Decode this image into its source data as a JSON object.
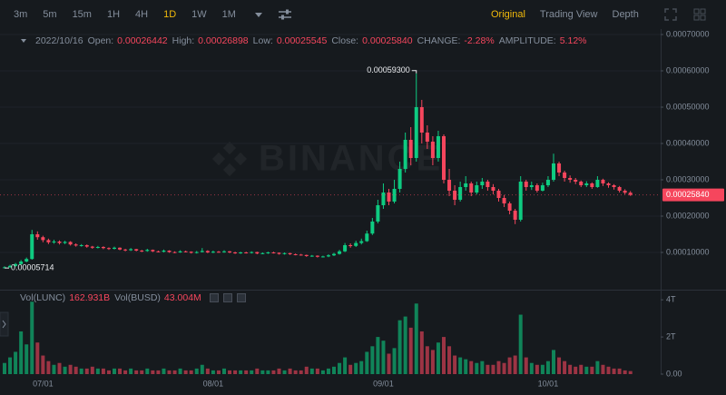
{
  "toolbar": {
    "intervals": [
      "3m",
      "5m",
      "15m",
      "1H",
      "4H",
      "1D",
      "1W",
      "1M"
    ],
    "active_interval": "1D",
    "views": [
      "Original",
      "Trading View",
      "Depth"
    ],
    "active_view": "Original"
  },
  "chart_data": {
    "type": "candlestick",
    "info": {
      "date": "2022/10/16",
      "fields": [
        {
          "label": "Open:",
          "value": "0.00026442"
        },
        {
          "label": "High:",
          "value": "0.00026898"
        },
        {
          "label": "Low:",
          "value": "0.00025545"
        },
        {
          "label": "Close:",
          "value": "0.00025840"
        },
        {
          "label": "CHANGE:",
          "value": "-2.28%"
        },
        {
          "label": "AMPLITUDE:",
          "value": "5.12%"
        }
      ]
    },
    "volume_info": [
      {
        "label": "Vol(LUNC)",
        "value": "162.931B"
      },
      {
        "label": "Vol(BUSD)",
        "value": "43.004M"
      }
    ],
    "watermark": "BINANCE",
    "categories": [
      null,
      null,
      null,
      null,
      null,
      null,
      null,
      "07/01",
      null,
      null,
      null,
      null,
      null,
      null,
      null,
      null,
      null,
      null,
      null,
      null,
      null,
      null,
      null,
      null,
      null,
      null,
      null,
      null,
      null,
      null,
      null,
      null,
      null,
      null,
      null,
      null,
      null,
      null,
      "08/01",
      null,
      null,
      null,
      null,
      null,
      null,
      null,
      null,
      null,
      null,
      null,
      null,
      null,
      null,
      null,
      null,
      null,
      null,
      null,
      null,
      null,
      null,
      null,
      null,
      null,
      null,
      null,
      null,
      null,
      null,
      "09/01",
      null,
      null,
      null,
      null,
      null,
      null,
      null,
      null,
      null,
      null,
      null,
      null,
      null,
      null,
      null,
      null,
      null,
      null,
      null,
      null,
      null,
      null,
      null,
      null,
      null,
      null,
      null,
      null,
      null,
      "10/01",
      null,
      null,
      null,
      null,
      null,
      null,
      null,
      null,
      null,
      null,
      null,
      null,
      null,
      null,
      null
    ],
    "open": [
      5.8e-05,
      5.9e-05,
      6.3e-05,
      6.8e-05,
      7.5e-05,
      8.2e-05,
      0.00015,
      0.000142,
      0.000134,
      0.000128,
      0.00013,
      0.000126,
      0.000129,
      0.000122,
      0.000119,
      0.00012,
      0.000116,
      0.000113,
      0.000115,
      0.000112,
      0.00011,
      0.000113,
      0.000108,
      0.000106,
      0.000109,
      0.000105,
      0.000104,
      0.000107,
      0.000103,
      0.000102,
      0.000105,
      0.000101,
      0.0001,
      0.000103,
      0.000102,
      9.9e-05,
      0.000101,
      0.000104,
      0.0001,
      0.000102,
      0.000101,
      0.000103,
      0.0001,
      9.8e-05,
      0.0001,
      9.9e-05,
      0.000101,
      9.7e-05,
      9.8e-05,
      0.0001,
      9.9e-05,
      9.6e-05,
      9.8e-05,
      9.5e-05,
      9.4e-05,
      9.3e-05,
      9e-05,
      9.1e-05,
      8.8e-05,
      8.9e-05,
      9.2e-05,
      9.6e-05,
      0.000103,
      0.00012,
      0.000118,
      0.000126,
      0.000131,
      0.000152,
      0.000185,
      0.00023,
      0.000265,
      0.00024,
      0.000275,
      0.00033,
      0.00041,
      0.00036,
      0.0005,
      0.00043,
      0.000405,
      0.00036,
      0.00042,
      0.0003,
      0.00027,
      0.000245,
      0.00028,
      0.00029,
      0.000265,
      0.000285,
      0.000295,
      0.00028,
      0.00027,
      0.00025,
      0.000235,
      0.000215,
      0.00019,
      0.000295,
      0.00028,
      0.000285,
      0.00027,
      0.000285,
      0.0003,
      0.000345,
      0.00032,
      0.000305,
      0.0003,
      0.000295,
      0.000285,
      0.00029,
      0.00028,
      0.0003,
      0.00029,
      0.000285,
      0.00028,
      0.00027,
      0.00026442
    ],
    "high": [
      6.2e-05,
      6.6e-05,
      7.1e-05,
      7.9e-05,
      8.6e-05,
      0.000162,
      0.000158,
      0.000146,
      0.000138,
      0.000135,
      0.000133,
      0.000132,
      0.000131,
      0.000125,
      0.000123,
      0.000122,
      0.000118,
      0.000118,
      0.000117,
      0.000114,
      0.000116,
      0.000114,
      0.00011,
      0.000112,
      0.00011,
      0.000107,
      0.00011,
      0.000108,
      0.000105,
      0.000108,
      0.000106,
      0.000103,
      0.000106,
      0.000105,
      0.000103,
      0.000104,
      0.000112,
      0.000106,
      0.000105,
      0.000104,
      0.000106,
      0.000104,
      0.000102,
      0.000102,
      0.000102,
      0.000103,
      0.000102,
      0.0001,
      0.000102,
      0.000102,
      0.0001,
      0.0001,
      9.9e-05,
      9.7e-05,
      9.6e-05,
      9.4e-05,
      9.3e-05,
      9.2e-05,
      9.1e-05,
      9.5e-05,
      9.9e-05,
      0.000107,
      0.000126,
      0.000125,
      0.000132,
      0.000138,
      0.00016,
      0.000195,
      0.000245,
      0.00029,
      0.000275,
      0.0003,
      0.00035,
      0.00043,
      0.000445,
      0.000593,
      0.00052,
      0.00045,
      0.00042,
      0.000435,
      0.000425,
      0.00033,
      0.000285,
      0.000295,
      0.00031,
      0.000295,
      0.000295,
      0.000305,
      0.0003,
      0.000288,
      0.000275,
      0.000258,
      0.00024,
      0.00022,
      0.00031,
      0.0003,
      0.000295,
      0.00029,
      0.000292,
      0.00031,
      0.000372,
      0.00035,
      0.000325,
      0.000312,
      0.000305,
      0.000298,
      0.000296,
      0.000293,
      0.00031,
      0.000303,
      0.000293,
      0.000288,
      0.000283,
      0.000274,
      0.00026898
    ],
    "low": [
      5.714e-05,
      5.8e-05,
      6.1e-05,
      6.6e-05,
      7.3e-05,
      8e-05,
      0.000135,
      0.000128,
      0.000123,
      0.000124,
      0.000122,
      0.000123,
      0.000119,
      0.000116,
      0.000116,
      0.000113,
      0.00011,
      0.000111,
      0.000109,
      0.000107,
      0.000108,
      0.000106,
      0.000103,
      0.000104,
      0.000103,
      0.000101,
      0.000102,
      0.000101,
      0.0001,
      0.0001,
      9.9e-05,
      9.8e-05,
      9.9e-05,
      0.0001,
      9.7e-05,
      9.7e-05,
      0.0001,
      9.8e-05,
      9.8e-05,
      9.9e-05,
      9.9e-05,
      9.8e-05,
      9.6e-05,
      9.6e-05,
      9.7e-05,
      9.7e-05,
      9.5e-05,
      9.5e-05,
      9.6e-05,
      9.7e-05,
      9.4e-05,
      9.4e-05,
      9.3e-05,
      9.2e-05,
      9.1e-05,
      8.8e-05,
      8.8e-05,
      8.6e-05,
      8.6e-05,
      8.7e-05,
      9e-05,
      9.4e-05,
      0.000101,
      0.000113,
      0.000115,
      0.000122,
      0.000129,
      0.000148,
      0.00018,
      0.00022,
      0.00023,
      0.000235,
      0.000265,
      0.00032,
      0.00034,
      0.00035,
      0.0004,
      0.000385,
      0.00034,
      0.00035,
      0.00029,
      0.000255,
      0.00023,
      0.00024,
      0.00027,
      0.000255,
      0.00026,
      0.000275,
      0.00027,
      0.00026,
      0.00024,
      0.000225,
      0.000205,
      0.000178,
      0.000185,
      0.00027,
      0.000272,
      0.000265,
      0.000268,
      0.00028,
      0.000295,
      0.00031,
      0.000295,
      0.000292,
      0.000288,
      0.00028,
      0.00028,
      0.000275,
      0.000278,
      0.000283,
      0.000278,
      0.000273,
      0.000265,
      0.00026,
      0.00025545
    ],
    "close": [
      5.9e-05,
      6.3e-05,
      6.8e-05,
      7.5e-05,
      8.2e-05,
      0.00015,
      0.000142,
      0.000134,
      0.000128,
      0.00013,
      0.000126,
      0.000129,
      0.000122,
      0.000119,
      0.00012,
      0.000116,
      0.000113,
      0.000115,
      0.000112,
      0.00011,
      0.000113,
      0.000108,
      0.000106,
      0.000109,
      0.000105,
      0.000104,
      0.000107,
      0.000103,
      0.000102,
      0.000105,
      0.000101,
      0.0001,
      0.000103,
      0.000102,
      9.9e-05,
      0.000101,
      0.000104,
      0.0001,
      0.000102,
      0.000101,
      0.000103,
      0.0001,
      9.8e-05,
      0.0001,
      9.9e-05,
      0.000101,
      9.7e-05,
      9.8e-05,
      0.0001,
      9.9e-05,
      9.6e-05,
      9.8e-05,
      9.5e-05,
      9.4e-05,
      9.3e-05,
      9e-05,
      9.1e-05,
      8.8e-05,
      8.9e-05,
      9.2e-05,
      9.6e-05,
      0.000103,
      0.00012,
      0.000118,
      0.000126,
      0.000131,
      0.000152,
      0.000185,
      0.00023,
      0.000265,
      0.00024,
      0.000275,
      0.00033,
      0.00041,
      0.00036,
      0.0005,
      0.00043,
      0.000405,
      0.00036,
      0.00042,
      0.0003,
      0.00027,
      0.000245,
      0.00028,
      0.00029,
      0.000265,
      0.000285,
      0.000295,
      0.00028,
      0.00027,
      0.00025,
      0.000235,
      0.000215,
      0.00019,
      0.000295,
      0.00028,
      0.000285,
      0.00027,
      0.000285,
      0.0003,
      0.000345,
      0.00032,
      0.000305,
      0.0003,
      0.000295,
      0.000285,
      0.00029,
      0.00028,
      0.0003,
      0.00029,
      0.000285,
      0.00028,
      0.00027,
      0.00026442,
      0.0002584
    ],
    "volume": [
      600000000000.0,
      900000000000.0,
      1200000000000.0,
      2300000000000.0,
      1600000000000.0,
      3900000000000.0,
      1700000000000.0,
      1000000000000.0,
      700000000000.0,
      500000000000.0,
      600000000000.0,
      400000000000.0,
      500000000000.0,
      400000000000.0,
      300000000000.0,
      300000000000.0,
      400000000000.0,
      300000000000.0,
      300000000000.0,
      200000000000.0,
      300000000000.0,
      300000000000.0,
      200000000000.0,
      300000000000.0,
      200000000000.0,
      200000000000.0,
      300000000000.0,
      200000000000.0,
      200000000000.0,
      300000000000.0,
      200000000000.0,
      200000000000.0,
      300000000000.0,
      200000000000.0,
      200000000000.0,
      300000000000.0,
      500000000000.0,
      300000000000.0,
      200000000000.0,
      200000000000.0,
      300000000000.0,
      200000000000.0,
      200000000000.0,
      200000000000.0,
      200000000000.0,
      200000000000.0,
      300000000000.0,
      200000000000.0,
      200000000000.0,
      200000000000.0,
      300000000000.0,
      200000000000.0,
      300000000000.0,
      200000000000.0,
      200000000000.0,
      400000000000.0,
      300000000000.0,
      300000000000.0,
      200000000000.0,
      300000000000.0,
      400000000000.0,
      600000000000.0,
      900000000000.0,
      500000000000.0,
      600000000000.0,
      700000000000.0,
      1200000000000.0,
      1500000000000.0,
      2000000000000.0,
      1800000000000.0,
      1100000000000.0,
      1400000000000.0,
      2900000000000.0,
      3100000000000.0,
      2500000000000.0,
      3800000000000.0,
      2300000000000.0,
      1500000000000.0,
      1300000000000.0,
      1700000000000.0,
      2000000000000.0,
      1500000000000.0,
      1000000000000.0,
      900000000000.0,
      800000000000.0,
      700000000000.0,
      600000000000.0,
      700000000000.0,
      500000000000.0,
      500000000000.0,
      700000000000.0,
      600000000000.0,
      900000000000.0,
      1000000000000.0,
      3200000000000.0,
      900000000000.0,
      600000000000.0,
      500000000000.0,
      500000000000.0,
      700000000000.0,
      1300000000000.0,
      900000000000.0,
      700000000000.0,
      500000000000.0,
      400000000000.0,
      500000000000.0,
      400000000000.0,
      400000000000.0,
      700000000000.0,
      500000000000.0,
      400000000000.0,
      300000000000.0,
      300000000000.0,
      200000000000.0,
      162931000000.0
    ],
    "max_label": "0.00059300",
    "min_label": "0.00005714",
    "last_price_label": "0.00025840",
    "up_color": "#0ecb81",
    "down_color": "#f6465d",
    "grid": true,
    "ylim": [
      0,
      0.000715
    ],
    "yticks": [
      {
        "value": 0.0001,
        "label": "0.00010000"
      },
      {
        "value": 0.0002,
        "label": "0.00020000"
      },
      {
        "value": 0.0003,
        "label": "0.00030000"
      },
      {
        "value": 0.0004,
        "label": "0.00040000"
      },
      {
        "value": 0.0005,
        "label": "0.00050000"
      },
      {
        "value": 0.0006,
        "label": "0.00060000"
      },
      {
        "value": 0.0007,
        "label": "0.00070000"
      }
    ],
    "volume_ylim": [
      0,
      4400000000000.0
    ],
    "volume_yticks": [
      {
        "value": 0,
        "label": "0.00"
      },
      {
        "value": 2000000000000.0,
        "label": "2T"
      },
      {
        "value": 4000000000000.0,
        "label": "4T"
      }
    ]
  }
}
